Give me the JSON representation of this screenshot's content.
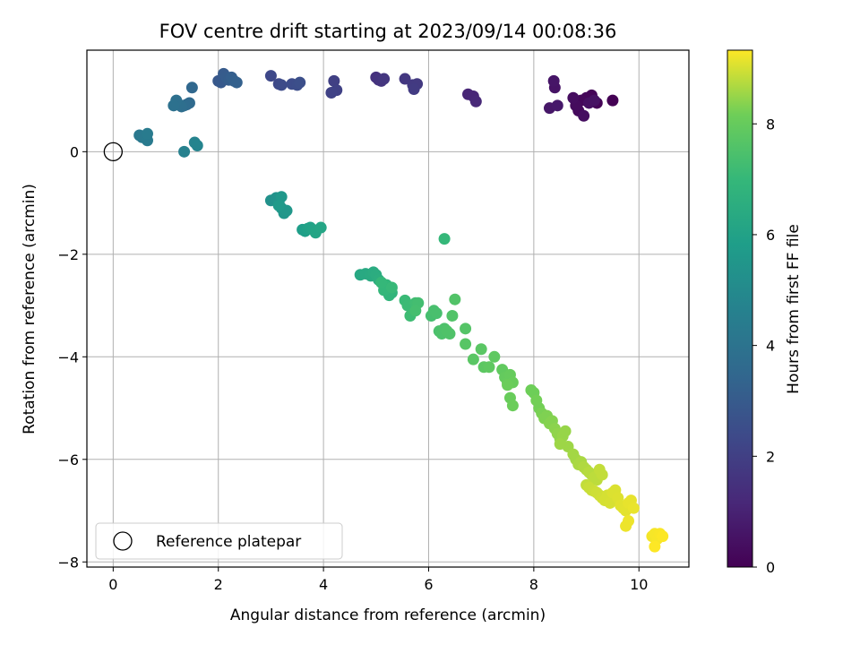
{
  "chart_data": {
    "type": "scatter",
    "title": "FOV centre drift starting at 2023/09/14 00:08:36",
    "xlabel": "Angular distance from reference (arcmin)",
    "ylabel": "Rotation from reference (arcmin)",
    "xlim": [
      -0.5,
      10.95
    ],
    "ylim": [
      -8.1,
      1.98
    ],
    "x_ticks": [
      0,
      2,
      4,
      6,
      8,
      10
    ],
    "y_ticks": [
      -8,
      -6,
      -4,
      -2,
      0
    ],
    "x_tick_labels": [
      "0",
      "2",
      "4",
      "6",
      "8",
      "10"
    ],
    "y_tick_labels": [
      "−8",
      "−6",
      "−4",
      "−2",
      "0"
    ],
    "grid": true,
    "legend": {
      "position": "bottom-left",
      "entries": [
        "Reference platepar"
      ]
    },
    "reference_point": {
      "x": 0,
      "y": 0
    },
    "colorbar": {
      "label": "Hours from first FF file",
      "colormap": "viridis",
      "min": 0,
      "max": 9.33,
      "ticks": [
        0,
        2,
        4,
        6,
        8
      ],
      "tick_labels": [
        "0",
        "2",
        "4",
        "6",
        "8"
      ]
    },
    "series": [
      {
        "x": [
          9.5,
          9.2,
          9.1,
          9.0,
          8.9,
          8.85,
          8.8,
          8.75,
          8.95,
          9.05,
          9.15,
          8.4,
          8.38,
          8.3,
          8.45,
          6.75,
          6.85,
          6.9,
          5.0,
          5.05,
          5.1,
          5.15,
          5.55,
          5.7,
          5.78,
          5.72,
          4.2,
          4.25,
          4.15,
          3.0,
          3.15,
          3.2,
          3.4,
          3.5,
          3.55,
          2.0,
          2.05,
          2.1,
          2.15,
          2.2,
          2.25,
          2.3,
          2.35,
          1.5,
          1.45,
          1.4,
          1.35,
          1.3,
          1.25,
          1.2,
          1.15,
          0.5,
          0.55,
          0.65,
          0.65,
          1.35,
          1.55,
          1.6
        ],
        "y": [
          1.0,
          0.95,
          1.1,
          1.05,
          1.0,
          0.8,
          0.9,
          1.05,
          0.7,
          0.95,
          1.0,
          1.25,
          1.38,
          0.85,
          0.9,
          1.12,
          1.08,
          0.98,
          1.45,
          1.4,
          1.38,
          1.42,
          1.42,
          1.3,
          1.32,
          1.22,
          1.38,
          1.2,
          1.15,
          1.48,
          1.32,
          1.3,
          1.32,
          1.3,
          1.35,
          1.38,
          1.35,
          1.52,
          1.45,
          1.4,
          1.45,
          1.38,
          1.35,
          1.25,
          0.95,
          0.92,
          0.9,
          0.88,
          0.92,
          1.0,
          0.9,
          0.32,
          0.28,
          0.22,
          0.35,
          0.0,
          0.18,
          0.12
        ],
        "hours": [
          0.0,
          0.05,
          0.1,
          0.15,
          0.2,
          0.25,
          0.3,
          0.35,
          0.4,
          0.45,
          0.5,
          0.55,
          0.6,
          0.65,
          0.7,
          1.1,
          1.15,
          1.2,
          1.5,
          1.55,
          1.6,
          1.65,
          1.7,
          1.75,
          1.8,
          1.85,
          2.0,
          2.05,
          2.1,
          2.3,
          2.35,
          2.4,
          2.45,
          2.5,
          2.55,
          2.9,
          2.95,
          3.0,
          3.05,
          3.1,
          3.15,
          3.2,
          3.25,
          3.5,
          3.6,
          3.65,
          3.7,
          3.75,
          3.8,
          3.85,
          3.9,
          4.2,
          4.25,
          4.3,
          4.35,
          4.6,
          4.7,
          4.75
        ]
      },
      {
        "x": [
          3.0,
          3.1,
          3.15,
          3.2,
          3.25,
          3.3,
          3.2,
          3.15,
          3.6,
          3.65,
          3.7,
          3.75,
          3.8,
          3.85,
          3.95,
          4.7,
          4.8,
          4.9,
          4.95,
          5.0,
          5.05,
          5.1,
          5.15,
          5.2,
          5.25,
          5.3,
          5.25,
          5.2,
          5.15,
          5.1,
          5.3,
          5.55,
          5.6,
          5.65,
          5.75,
          5.8,
          5.75,
          6.05,
          6.1,
          6.15,
          6.2,
          6.25,
          6.3,
          6.35,
          6.4,
          6.45,
          6.5,
          6.3,
          6.7,
          6.7,
          6.85,
          7.0,
          7.05,
          7.15,
          7.25,
          7.4,
          7.45,
          7.5,
          7.55,
          7.6,
          7.55,
          7.5,
          7.6
        ],
        "y": [
          -0.95,
          -0.9,
          -1.0,
          -1.1,
          -1.2,
          -1.15,
          -0.88,
          -1.05,
          -1.52,
          -1.55,
          -1.5,
          -1.48,
          -1.52,
          -1.58,
          -1.48,
          -2.4,
          -2.38,
          -2.42,
          -2.35,
          -2.4,
          -2.5,
          -2.55,
          -2.6,
          -2.65,
          -2.7,
          -2.75,
          -2.8,
          -2.6,
          -2.7,
          -2.55,
          -2.65,
          -2.9,
          -3.0,
          -3.2,
          -2.95,
          -2.95,
          -3.1,
          -3.2,
          -3.1,
          -3.15,
          -3.5,
          -3.55,
          -3.45,
          -3.5,
          -3.55,
          -3.2,
          -2.88,
          -1.7,
          -3.45,
          -3.75,
          -4.05,
          -3.85,
          -4.2,
          -4.2,
          -4.0,
          -4.25,
          -4.4,
          -4.5,
          -4.35,
          -4.5,
          -4.8,
          -4.55,
          -4.95
        ],
        "hours": [
          5.3,
          5.35,
          5.4,
          5.45,
          5.5,
          5.55,
          5.6,
          5.65,
          5.85,
          5.9,
          5.95,
          6.0,
          6.05,
          6.1,
          6.15,
          6.3,
          6.35,
          6.4,
          6.45,
          6.5,
          6.55,
          6.6,
          6.65,
          6.7,
          6.75,
          6.8,
          6.85,
          6.9,
          6.95,
          7.0,
          7.05,
          7.1,
          7.15,
          7.2,
          7.25,
          7.3,
          7.35,
          7.35,
          7.4,
          7.4,
          7.45,
          7.5,
          7.5,
          7.55,
          7.55,
          7.6,
          7.6,
          7.0,
          7.65,
          7.7,
          7.75,
          7.75,
          7.8,
          7.85,
          7.85,
          7.9,
          7.95,
          8.0,
          8.0,
          8.05,
          8.05,
          8.1,
          8.1
        ]
      },
      {
        "x": [
          7.95,
          8.0,
          8.05,
          8.1,
          8.15,
          8.2,
          8.25,
          8.3,
          8.35,
          8.4,
          8.45,
          8.5,
          8.55,
          8.6,
          8.65,
          8.5,
          8.75,
          8.8,
          8.85,
          8.9,
          8.95,
          9.0,
          9.05,
          9.1,
          9.15,
          9.2,
          9.25,
          9.3,
          9.0,
          9.05,
          9.1,
          9.15,
          9.2,
          9.25,
          9.3,
          9.35,
          9.4,
          9.45,
          9.5,
          9.55,
          9.6,
          9.65,
          9.7,
          9.75,
          9.8,
          9.85,
          9.9,
          9.75,
          9.8,
          10.25,
          10.3,
          10.35,
          10.4,
          10.45,
          10.3
        ],
        "y": [
          -4.65,
          -4.7,
          -4.85,
          -5.0,
          -5.1,
          -5.2,
          -5.15,
          -5.3,
          -5.25,
          -5.4,
          -5.5,
          -5.6,
          -5.55,
          -5.45,
          -5.75,
          -5.7,
          -5.9,
          -6.0,
          -6.1,
          -6.05,
          -6.15,
          -6.2,
          -6.25,
          -6.3,
          -6.35,
          -6.4,
          -6.2,
          -6.3,
          -6.5,
          -6.55,
          -6.6,
          -6.62,
          -6.65,
          -6.7,
          -6.75,
          -6.8,
          -6.7,
          -6.85,
          -6.65,
          -6.6,
          -6.75,
          -6.9,
          -6.95,
          -7.0,
          -6.85,
          -6.8,
          -6.95,
          -7.3,
          -7.2,
          -7.5,
          -7.45,
          -7.55,
          -7.45,
          -7.5,
          -7.7
        ],
        "hours": [
          8.15,
          8.15,
          8.2,
          8.2,
          8.25,
          8.3,
          8.3,
          8.35,
          8.35,
          8.4,
          8.45,
          8.45,
          8.5,
          8.5,
          8.55,
          8.55,
          8.6,
          8.6,
          8.65,
          8.65,
          8.7,
          8.7,
          8.75,
          8.75,
          8.8,
          8.8,
          8.85,
          8.85,
          8.85,
          8.9,
          8.9,
          8.92,
          8.95,
          8.95,
          8.97,
          9.0,
          9.0,
          9.02,
          9.05,
          9.05,
          9.07,
          9.1,
          9.1,
          9.12,
          9.15,
          9.15,
          9.17,
          9.2,
          9.2,
          9.25,
          9.27,
          9.28,
          9.3,
          9.32,
          9.33
        ]
      }
    ]
  }
}
